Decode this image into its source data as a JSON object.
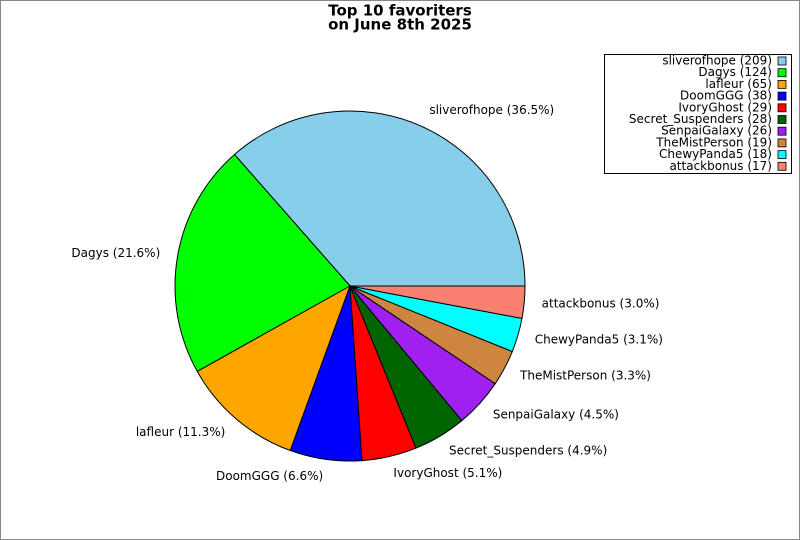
{
  "chart_data": {
    "type": "pie",
    "title": [
      "Top 10 favoriters",
      "on June 8th 2025"
    ],
    "categories": [
      "sliverofhope",
      "Dagys",
      "lafleur",
      "DoomGGG",
      "IvoryGhost",
      "Secret_Suspenders",
      "SenpaiGalaxy",
      "TheMistPerson",
      "ChewyPanda5",
      "attackbonus"
    ],
    "values": [
      209,
      124,
      65,
      38,
      29,
      28,
      26,
      19,
      18,
      17
    ],
    "labels": [
      "sliverofhope (36.5%)",
      "Dagys (21.6%)",
      "lafleur (11.3%)",
      "DoomGGG (6.6%)",
      "IvoryGhost (5.1%)",
      "Secret_Suspenders (4.9%)",
      "SenpaiGalaxy (4.5%)",
      "TheMistPerson (3.3%)",
      "ChewyPanda5 (3.1%)",
      "attackbonus (3.0%)"
    ],
    "legend_labels": [
      "sliverofhope (209)",
      "Dagys (124)",
      "lafleur (65)",
      "DoomGGG (38)",
      "IvoryGhost (29)",
      "Secret_Suspenders (28)",
      "SenpaiGalaxy (26)",
      "TheMistPerson (19)",
      "ChewyPanda5 (18)",
      "attackbonus (17)"
    ],
    "colors": [
      "#87ceeb",
      "#00ff00",
      "#ffa500",
      "#0000ff",
      "#ff0000",
      "#006400",
      "#a020f0",
      "#cd853f",
      "#00ffff",
      "#fa8072"
    ],
    "legend": "upper right"
  }
}
